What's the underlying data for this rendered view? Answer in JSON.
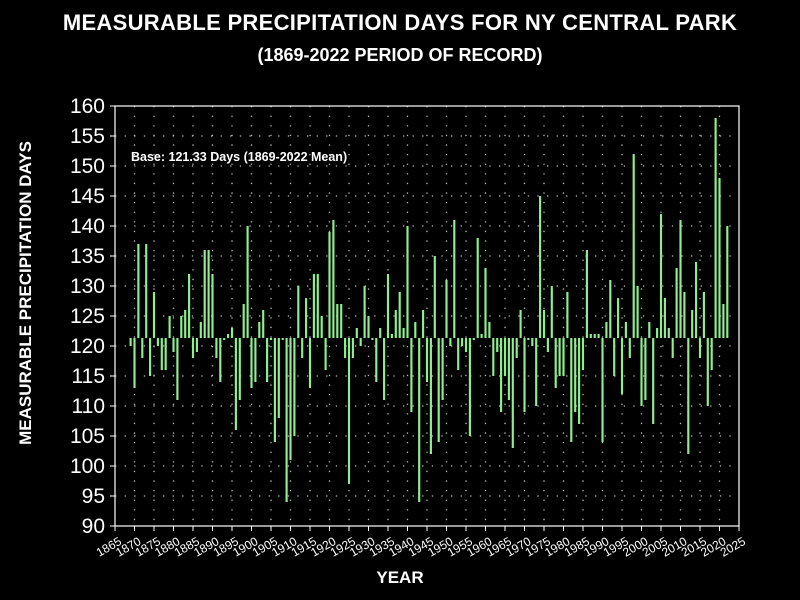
{
  "chart_data": {
    "type": "bar",
    "title": "MEASURABLE PRECIPITATION DAYS FOR NY CENTRAL PARK",
    "subtitle": "(1869-2022 PERIOD OF RECORD)",
    "xlabel": "YEAR",
    "ylabel": "MEASURABLE PRECIPITATION DAYS",
    "annotation": "Base: 121.33 Days (1869-2022 Mean)",
    "baseline": 121.33,
    "xlim": [
      1865,
      2025
    ],
    "ylim": [
      90,
      160
    ],
    "x_ticks": [
      1865,
      1870,
      1875,
      1880,
      1885,
      1890,
      1895,
      1900,
      1905,
      1910,
      1915,
      1920,
      1925,
      1930,
      1935,
      1940,
      1945,
      1950,
      1955,
      1960,
      1965,
      1970,
      1975,
      1980,
      1985,
      1990,
      1995,
      2000,
      2005,
      2010,
      2015,
      2020,
      2025
    ],
    "y_ticks": [
      90,
      95,
      100,
      105,
      110,
      115,
      120,
      125,
      130,
      135,
      140,
      145,
      150,
      155,
      160
    ],
    "grid": "dotted",
    "bar_color": "#90ee90",
    "x_start": 1869,
    "values": [
      120,
      113,
      137,
      118,
      137,
      115,
      129,
      120,
      116,
      116,
      125,
      119,
      111,
      125,
      126,
      132,
      118,
      119,
      124,
      136,
      136,
      132,
      118,
      114,
      121,
      122,
      123,
      106,
      111,
      127,
      140,
      113,
      114,
      124,
      126,
      114,
      121,
      104,
      108,
      121,
      94,
      101,
      105,
      130,
      118,
      128,
      113,
      132,
      132,
      125,
      116,
      139,
      141,
      127,
      127,
      118,
      97,
      118,
      123,
      120,
      130,
      125,
      121,
      114,
      123,
      111,
      132,
      122,
      126,
      129,
      123,
      140,
      109,
      124,
      94,
      126,
      114,
      102,
      135,
      104,
      111,
      131,
      120,
      141,
      116,
      120,
      119,
      105,
      121,
      138,
      122,
      133,
      124,
      115,
      119,
      109,
      115,
      111,
      103,
      118,
      126,
      109,
      121,
      120,
      110,
      145,
      126,
      119,
      130,
      113,
      115,
      115,
      129,
      104,
      109,
      107,
      116,
      136,
      122,
      122,
      122,
      104,
      124,
      131,
      115,
      128,
      112,
      124,
      118,
      152,
      130,
      110,
      111,
      124,
      107,
      123,
      142,
      128,
      123,
      118,
      133,
      141,
      129,
      102,
      126,
      134,
      118,
      129,
      110,
      116,
      158,
      148,
      127,
      140
    ]
  }
}
